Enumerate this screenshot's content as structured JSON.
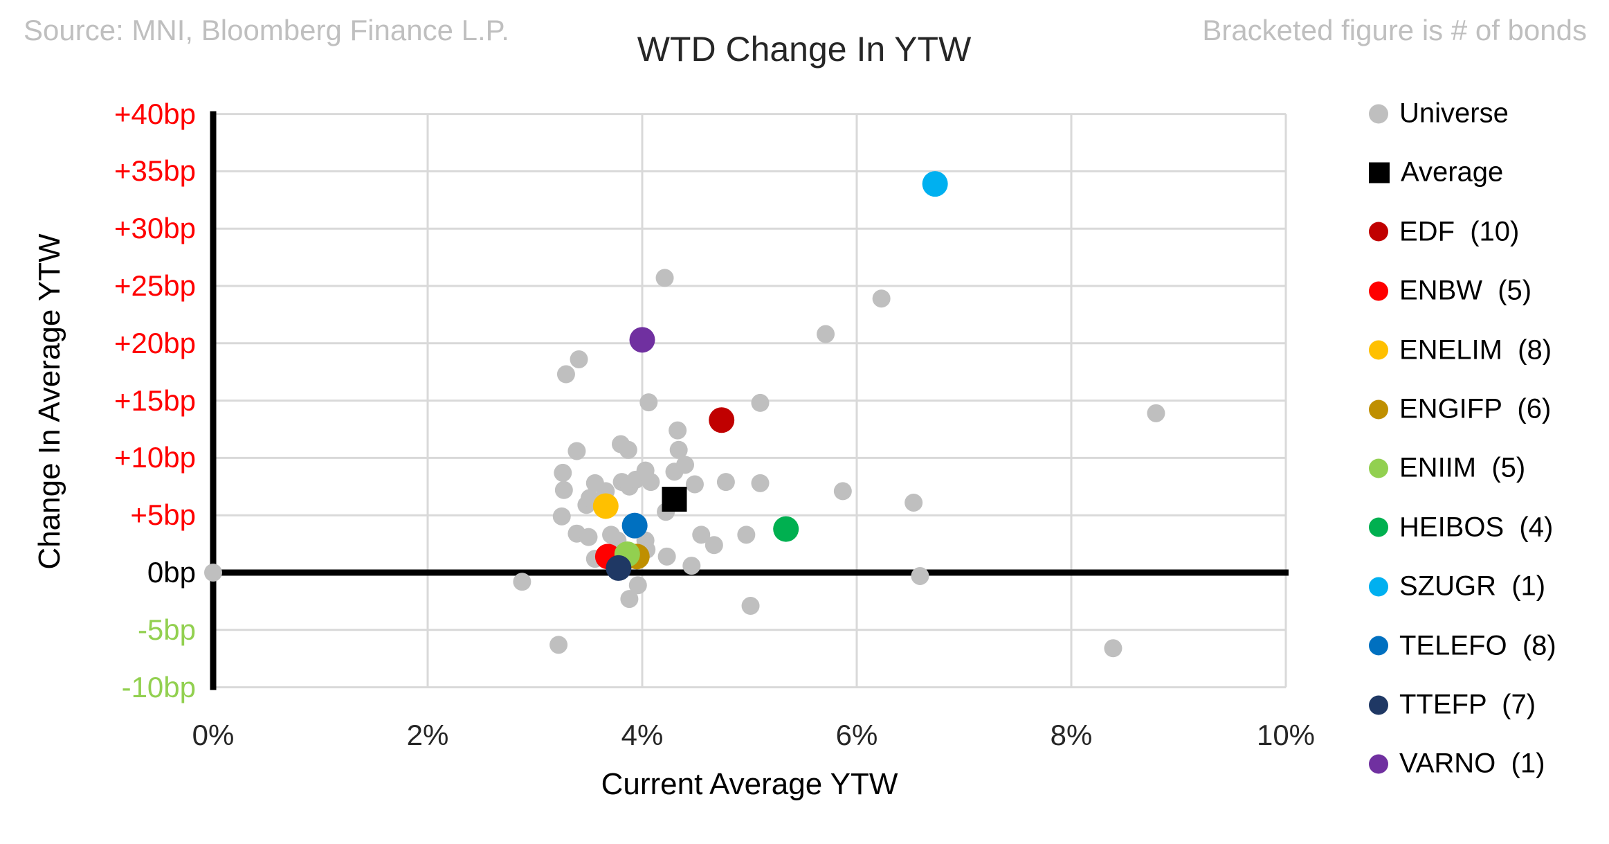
{
  "header": {
    "source": "Source: MNI, Bloomberg Finance L.P.",
    "note": "Bracketed figure is # of bonds"
  },
  "chart_data": {
    "type": "scatter",
    "title": "WTD Change In YTW",
    "xlabel": "Current Average YTW",
    "ylabel": "Change In Average YTW",
    "xlim": [
      0,
      10
    ],
    "ylim": [
      -10,
      40
    ],
    "grid": "on",
    "legend_position": "right",
    "x_ticks": [
      {
        "v": 0,
        "label": "0%"
      },
      {
        "v": 2,
        "label": "2%"
      },
      {
        "v": 4,
        "label": "4%"
      },
      {
        "v": 6,
        "label": "6%"
      },
      {
        "v": 8,
        "label": "8%"
      },
      {
        "v": 10,
        "label": "10%"
      }
    ],
    "y_ticks": [
      {
        "v": 40,
        "label": "+40bp",
        "color": "#FF0000"
      },
      {
        "v": 35,
        "label": "+35bp",
        "color": "#FF0000"
      },
      {
        "v": 30,
        "label": "+30bp",
        "color": "#FF0000"
      },
      {
        "v": 25,
        "label": "+25bp",
        "color": "#FF0000"
      },
      {
        "v": 20,
        "label": "+20bp",
        "color": "#FF0000"
      },
      {
        "v": 15,
        "label": "+15bp",
        "color": "#FF0000"
      },
      {
        "v": 10,
        "label": "+10bp",
        "color": "#FF0000"
      },
      {
        "v": 5,
        "label": "+5bp",
        "color": "#FF0000"
      },
      {
        "v": 0,
        "label": "0bp",
        "color": "#000000"
      },
      {
        "v": -5,
        "label": "-5bp",
        "color": "#92D050"
      },
      {
        "v": -10,
        "label": "-10bp",
        "color": "#92D050"
      }
    ],
    "series": [
      {
        "name": "Universe",
        "legend_label": "Universe",
        "color": "#BFBFBF",
        "marker": "circle",
        "emphasis": "normal",
        "points": [
          [
            0.0,
            0.0
          ],
          [
            2.88,
            -0.8
          ],
          [
            3.22,
            -6.3
          ],
          [
            8.39,
            -6.6
          ],
          [
            6.59,
            -0.3
          ],
          [
            5.01,
            -2.9
          ],
          [
            3.88,
            -2.3
          ],
          [
            3.96,
            -1.1
          ],
          [
            4.46,
            0.6
          ],
          [
            3.56,
            1.2
          ],
          [
            4.23,
            1.4
          ],
          [
            4.04,
            2.0
          ],
          [
            4.03,
            2.8
          ],
          [
            4.67,
            2.4
          ],
          [
            4.55,
            3.3
          ],
          [
            4.97,
            3.3
          ],
          [
            3.39,
            3.4
          ],
          [
            3.5,
            3.1
          ],
          [
            3.71,
            3.3
          ],
          [
            3.77,
            2.8
          ],
          [
            3.25,
            4.9
          ],
          [
            4.22,
            5.3
          ],
          [
            3.48,
            5.9
          ],
          [
            3.51,
            6.5
          ],
          [
            3.66,
            7.1
          ],
          [
            3.27,
            7.2
          ],
          [
            3.56,
            7.8
          ],
          [
            3.81,
            7.9
          ],
          [
            3.88,
            7.5
          ],
          [
            3.94,
            8.1
          ],
          [
            4.03,
            8.9
          ],
          [
            4.08,
            7.9
          ],
          [
            4.3,
            8.8
          ],
          [
            4.49,
            7.7
          ],
          [
            4.78,
            7.9
          ],
          [
            5.1,
            7.8
          ],
          [
            5.87,
            7.1
          ],
          [
            6.53,
            6.1
          ],
          [
            3.26,
            8.7
          ],
          [
            3.39,
            10.6
          ],
          [
            3.8,
            11.2
          ],
          [
            3.87,
            10.7
          ],
          [
            4.34,
            10.7
          ],
          [
            4.4,
            9.4
          ],
          [
            4.33,
            12.4
          ],
          [
            4.06,
            14.85
          ],
          [
            5.1,
            14.8
          ],
          [
            3.41,
            18.6
          ],
          [
            3.29,
            17.3
          ],
          [
            4.21,
            25.7
          ],
          [
            5.71,
            20.8
          ],
          [
            6.23,
            23.9
          ],
          [
            8.79,
            13.9
          ]
        ]
      },
      {
        "name": "Average",
        "legend_label": "Average",
        "color": "#000000",
        "marker": "square",
        "emphasis": "highlight",
        "points": [
          [
            4.3,
            6.4
          ]
        ]
      },
      {
        "name": "EDF",
        "legend_label": "EDF  (10)",
        "color": "#C00000",
        "marker": "circle",
        "emphasis": "highlight",
        "points": [
          [
            4.74,
            13.3
          ]
        ]
      },
      {
        "name": "ENBW",
        "legend_label": "ENBW  (5)",
        "color": "#FF0000",
        "marker": "circle",
        "emphasis": "highlight",
        "points": [
          [
            3.68,
            1.4
          ]
        ]
      },
      {
        "name": "ENELIM",
        "legend_label": "ENELIM  (8)",
        "color": "#FFC000",
        "marker": "circle",
        "emphasis": "highlight",
        "points": [
          [
            3.66,
            5.8
          ]
        ]
      },
      {
        "name": "ENGIFP",
        "legend_label": "ENGIFP  (6)",
        "color": "#BF8F00",
        "marker": "circle",
        "emphasis": "highlight",
        "points": [
          [
            3.95,
            1.4
          ]
        ]
      },
      {
        "name": "ENIIM",
        "legend_label": "ENIIM  (5)",
        "color": "#92D050",
        "marker": "circle",
        "emphasis": "highlight",
        "points": [
          [
            3.86,
            1.6
          ]
        ]
      },
      {
        "name": "HEIBOS",
        "legend_label": "HEIBOS  (4)",
        "color": "#00B050",
        "marker": "circle",
        "emphasis": "highlight",
        "points": [
          [
            5.34,
            3.8
          ]
        ]
      },
      {
        "name": "SZUGR",
        "legend_label": "SZUGR  (1)",
        "color": "#00B0F0",
        "marker": "circle",
        "emphasis": "highlight",
        "points": [
          [
            6.73,
            33.9
          ]
        ]
      },
      {
        "name": "TELEFO",
        "legend_label": "TELEFO  (8)",
        "color": "#0070C0",
        "marker": "circle",
        "emphasis": "highlight",
        "points": [
          [
            3.93,
            4.1
          ]
        ]
      },
      {
        "name": "TTEFP",
        "legend_label": "TTEFP  (7)",
        "color": "#1F3864",
        "marker": "circle",
        "emphasis": "highlight",
        "points": [
          [
            3.78,
            0.4
          ]
        ]
      },
      {
        "name": "VARNO",
        "legend_label": "VARNO  (1)",
        "color": "#7030A0",
        "marker": "circle",
        "emphasis": "highlight",
        "points": [
          [
            4.0,
            20.3
          ]
        ]
      }
    ],
    "colors": {
      "gridline": "#D9D9D9",
      "axis": "#000000",
      "positive_tick": "#FF0000",
      "negative_tick": "#92D050",
      "universe": "#BFBFBF"
    }
  }
}
